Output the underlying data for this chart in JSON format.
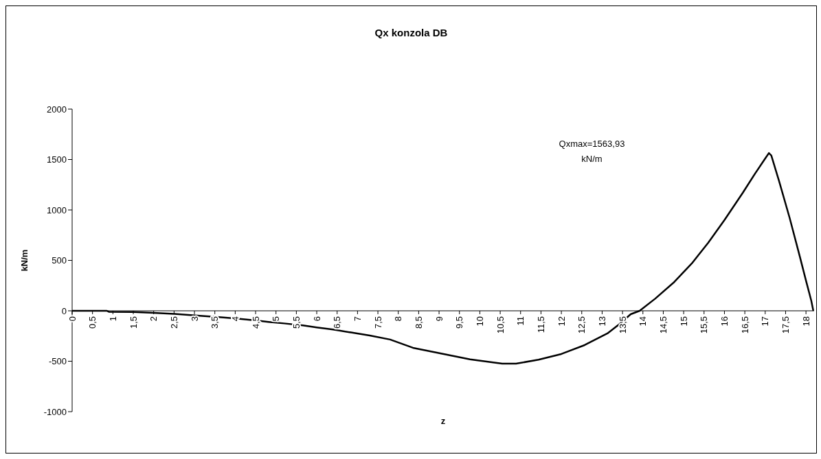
{
  "chart_data": {
    "type": "line",
    "title": "Qx konzola DB",
    "xlabel": "z",
    "ylabel": "kN/m",
    "annotations": [
      "Qxmax=1563,93 kN/m"
    ],
    "x": [
      0,
      0.5,
      0.85,
      0.9,
      1.5,
      2,
      2.5,
      3.13,
      3.5,
      3.98,
      4.5,
      4.82,
      5.2,
      5.66,
      6,
      6.4,
      6.84,
      7.3,
      7.8,
      8.36,
      9.03,
      9.76,
      10.2,
      10.55,
      10.89,
      11.44,
      12,
      12.57,
      13.13,
      13.4,
      13.7,
      13.92,
      14.3,
      14.77,
      15.2,
      15.6,
      16,
      16.45,
      16.75,
      17,
      17.09,
      17.15,
      17.34,
      17.6,
      17.85,
      18.0,
      18.13,
      18.18
    ],
    "series": [
      {
        "color": "#000000",
        "values": [
          0,
          0,
          0,
          -10,
          -12,
          -20,
          -30,
          -50,
          -60,
          -75,
          -95,
          -110,
          -125,
          -145,
          -165,
          -185,
          -215,
          -245,
          -285,
          -367,
          -422,
          -481,
          -505,
          -524,
          -524,
          -485,
          -428,
          -340,
          -224,
          -140,
          -34,
          0,
          120,
          286,
          470,
          673,
          900,
          1170,
          1360,
          1510,
          1564,
          1540,
          1286,
          920,
          537,
          300,
          100,
          0
        ]
      }
    ],
    "xlim": [
      0,
      18.2
    ],
    "xticks": [
      {
        "value": 0,
        "label": "0"
      },
      {
        "value": 0.5,
        "label": "0,5"
      },
      {
        "value": 1,
        "label": "1"
      },
      {
        "value": 1.5,
        "label": "1,5"
      },
      {
        "value": 2,
        "label": "2"
      },
      {
        "value": 2.5,
        "label": "2,5"
      },
      {
        "value": 3,
        "label": "3"
      },
      {
        "value": 3.5,
        "label": "3,5"
      },
      {
        "value": 4,
        "label": "4"
      },
      {
        "value": 4.5,
        "label": "4,5"
      },
      {
        "value": 5,
        "label": "5"
      },
      {
        "value": 5.5,
        "label": "5,5"
      },
      {
        "value": 6,
        "label": "6"
      },
      {
        "value": 6.5,
        "label": "6,5"
      },
      {
        "value": 7,
        "label": "7"
      },
      {
        "value": 7.5,
        "label": "7,5"
      },
      {
        "value": 8,
        "label": "8"
      },
      {
        "value": 8.5,
        "label": "8,5"
      },
      {
        "value": 9,
        "label": "9"
      },
      {
        "value": 9.5,
        "label": "9,5"
      },
      {
        "value": 10,
        "label": "10"
      },
      {
        "value": 10.5,
        "label": "10,5"
      },
      {
        "value": 11,
        "label": "11"
      },
      {
        "value": 11.5,
        "label": "11,5"
      },
      {
        "value": 12,
        "label": "12"
      },
      {
        "value": 12.5,
        "label": "12,5"
      },
      {
        "value": 13,
        "label": "13"
      },
      {
        "value": 13.5,
        "label": "13,5"
      },
      {
        "value": 14,
        "label": "14"
      },
      {
        "value": 14.5,
        "label": "14,5"
      },
      {
        "value": 15,
        "label": "15"
      },
      {
        "value": 15.5,
        "label": "15,5"
      },
      {
        "value": 16,
        "label": "16"
      },
      {
        "value": 16.5,
        "label": "16,5"
      },
      {
        "value": 17,
        "label": "17"
      },
      {
        "value": 17.5,
        "label": "17,5"
      },
      {
        "value": 18,
        "label": "18"
      }
    ],
    "ylim": [
      -1000,
      2000
    ],
    "yticks": [
      -1000,
      -500,
      0,
      500,
      1000,
      1500,
      2000
    ],
    "grid": false,
    "marker": "none",
    "line_style": "solid"
  }
}
